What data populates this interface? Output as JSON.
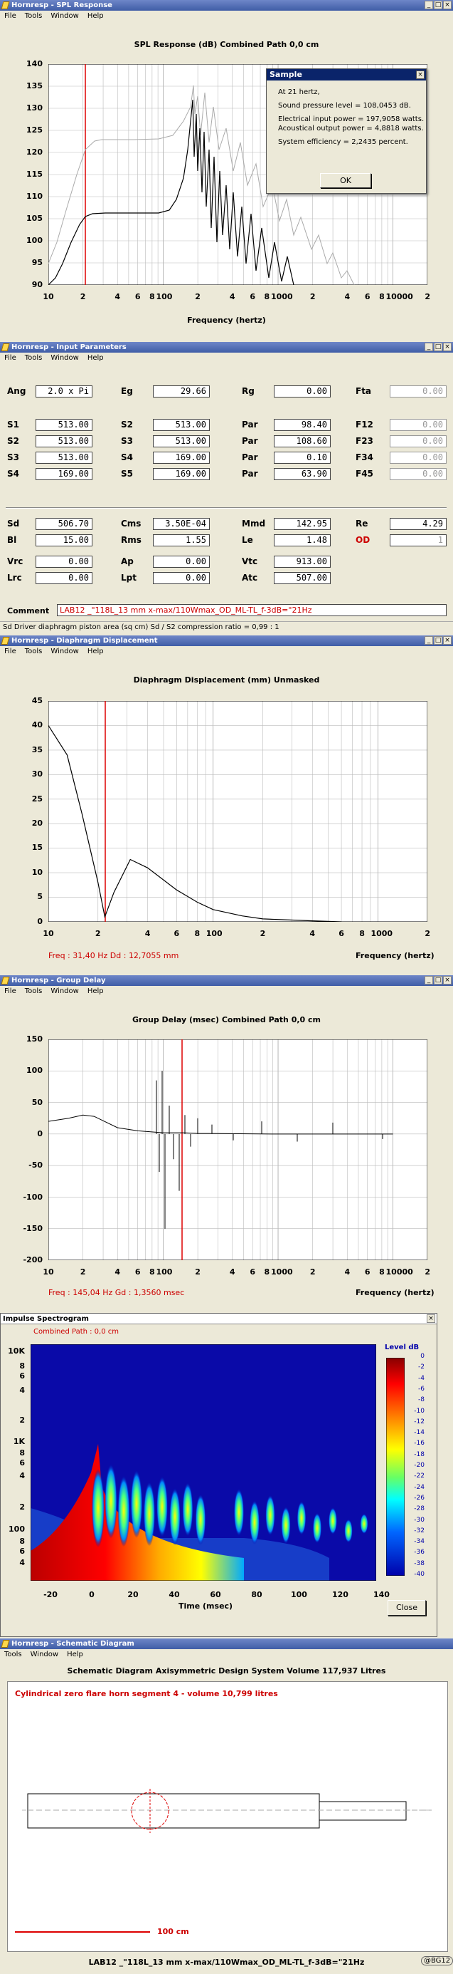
{
  "spl": {
    "title": "Hornresp - SPL Response",
    "menu": [
      "File",
      "Tools",
      "Window",
      "Help"
    ],
    "chart_title": "SPL Response (dB)   Combined   Path 0,0 cm",
    "xlabel": "Frequency (hertz)",
    "yticks": [
      "140",
      "135",
      "130",
      "125",
      "120",
      "115",
      "110",
      "105",
      "100",
      "95",
      "90"
    ],
    "xticks": [
      "10",
      "2",
      "4",
      "6",
      "8",
      "100",
      "2",
      "4",
      "6",
      "8",
      "1000",
      "2",
      "4",
      "6",
      "8",
      "10000",
      "2"
    ],
    "dialog": {
      "title": "Sample",
      "close": "×",
      "lines": [
        "At 21 hertz,",
        "",
        "Sound pressure level = 108,0453 dB.",
        "",
        "Electrical input power = 197,9058 watts.",
        "Acoustical output power = 4,8818 watts.",
        "",
        "System efficiency = 2,2435 percent."
      ],
      "ok": "OK"
    }
  },
  "params": {
    "title": "Hornresp - Input Parameters",
    "menu": [
      "File",
      "Tools",
      "Window",
      "Help"
    ],
    "row1": [
      [
        "Ang",
        "2.0 x Pi"
      ],
      [
        "Eg",
        "29.66"
      ],
      [
        "Rg",
        "0.00"
      ],
      [
        "Fta",
        "0.00"
      ]
    ],
    "grid": [
      [
        [
          "S1",
          "513.00"
        ],
        [
          "S2",
          "513.00"
        ],
        [
          "Par",
          "98.40"
        ],
        [
          "F12",
          "0.00"
        ]
      ],
      [
        [
          "S2",
          "513.00"
        ],
        [
          "S3",
          "513.00"
        ],
        [
          "Par",
          "108.60"
        ],
        [
          "F23",
          "0.00"
        ]
      ],
      [
        [
          "S3",
          "513.00"
        ],
        [
          "S4",
          "169.00"
        ],
        [
          "Par",
          "0.10"
        ],
        [
          "F34",
          "0.00"
        ]
      ],
      [
        [
          "S4",
          "169.00"
        ],
        [
          "S5",
          "169.00"
        ],
        [
          "Par",
          "63.90"
        ],
        [
          "F45",
          "0.00"
        ]
      ]
    ],
    "grid2": [
      [
        [
          "Sd",
          "506.70"
        ],
        [
          "Cms",
          "3.50E-04"
        ],
        [
          "Mmd",
          "142.95"
        ],
        [
          "Re",
          "4.29"
        ]
      ],
      [
        [
          "Bl",
          "15.00"
        ],
        [
          "Rms",
          "1.55"
        ],
        [
          "Le",
          "1.48"
        ],
        [
          "OD",
          "1"
        ]
      ]
    ],
    "grid3": [
      [
        [
          "Vrc",
          "0.00"
        ],
        [
          "Ap",
          "0.00"
        ],
        [
          "Vtc",
          "913.00"
        ]
      ],
      [
        [
          "Lrc",
          "0.00"
        ],
        [
          "Lpt",
          "0.00"
        ],
        [
          "Atc",
          "507.00"
        ]
      ]
    ],
    "comment_label": "Comment",
    "comment": "LAB12 _\"118L_13 mm x-max/110Wmax_OD_ML-TL_f-3dB=\"21Hz",
    "status": "Sd   Driver diaphragm piston area (sq cm)   Sd / S2 compression ratio = 0,99 : 1"
  },
  "disp": {
    "title": "Hornresp - Diaphragm Displacement",
    "menu": [
      "File",
      "Tools",
      "Window",
      "Help"
    ],
    "chart_title": "Diaphragm Displacement (mm)   Unmasked",
    "xlabel": "Frequency (hertz)",
    "yticks": [
      "45",
      "40",
      "35",
      "30",
      "25",
      "20",
      "15",
      "10",
      "5",
      "0"
    ],
    "xticks": [
      "10",
      "2",
      "4",
      "6",
      "8",
      "100",
      "2",
      "4",
      "6",
      "8",
      "1000",
      "2"
    ],
    "readout": "Freq : 31,40 Hz     Dd : 12,7055 mm"
  },
  "gd": {
    "title": "Hornresp - Group Delay",
    "menu": [
      "File",
      "Tools",
      "Window",
      "Help"
    ],
    "chart_title": "Group Delay (msec)   Combined   Path 0,0 cm",
    "xlabel": "Frequency (hertz)",
    "yticks": [
      "150",
      "100",
      "50",
      "0",
      "-50",
      "-100",
      "-150",
      "-200"
    ],
    "xticks": [
      "10",
      "2",
      "4",
      "6",
      "8",
      "100",
      "2",
      "4",
      "6",
      "8",
      "1000",
      "2",
      "4",
      "6",
      "8",
      "10000",
      "2"
    ],
    "readout": "Freq : 145,04 Hz     Gd : 1,3560 msec"
  },
  "imp": {
    "title": "Impulse Spectrogram",
    "close": "×",
    "subtitle": "Combined   Path : 0,0 cm",
    "yticks": [
      "10K",
      "8",
      "6",
      "4",
      "2",
      "1K",
      "8",
      "6",
      "4",
      "2",
      "100",
      "8",
      "6",
      "4"
    ],
    "xticks": [
      "-20",
      "0",
      "20",
      "40",
      "60",
      "80",
      "100",
      "120",
      "140"
    ],
    "xlabel": "Time (msec)",
    "legend_title": "Level   dB",
    "legend_ticks": [
      "0",
      "-2",
      "-4",
      "-6",
      "-8",
      "-10",
      "-12",
      "-14",
      "-16",
      "-18",
      "-20",
      "-22",
      "-24",
      "-26",
      "-28",
      "-30",
      "-32",
      "-34",
      "-36",
      "-38",
      "-40"
    ],
    "close_btn": "Close"
  },
  "sch": {
    "title": "Hornresp - Schematic Diagram",
    "menu": [
      "Tools",
      "Window",
      "Help"
    ],
    "chart_title": "Schematic Diagram   Axisymmetric Design   System Volume 117,937 Litres",
    "segment": "Cylindrical zero flare horn segment 4 - volume 10,799 litres",
    "scale": "100 cm",
    "caption": "LAB12 _\"118L_13 mm x-max/110Wmax_OD_ML-TL_f-3dB=\"21Hz",
    "badge": "@BG12"
  },
  "chart_data": [
    {
      "type": "line",
      "title": "SPL Response (dB)   Combined   Path 0,0 cm",
      "xlabel": "Frequency (hertz)",
      "ylabel": "",
      "xscale": "log",
      "xlim": [
        10,
        20000
      ],
      "ylim": [
        90,
        140
      ],
      "series": [
        {
          "values": [
            [
              10,
              90
            ],
            [
              15,
              99
            ],
            [
              20,
              106
            ],
            [
              25,
              108
            ],
            [
              30,
              108.5
            ],
            [
              50,
              108.5
            ],
            [
              100,
              108.5
            ],
            [
              150,
              109
            ],
            [
              180,
              115
            ],
            [
              200,
              118
            ]
          ]
        }
      ]
    },
    {
      "type": "line",
      "title": "Diaphragm Displacement (mm)   Unmasked",
      "xlabel": "Frequency (hertz)",
      "ylabel": "",
      "xscale": "log",
      "xlim": [
        10,
        2000
      ],
      "ylim": [
        0,
        45
      ],
      "series": [
        {
          "values": [
            [
              10,
              40
            ],
            [
              13,
              34
            ],
            [
              16,
              22
            ],
            [
              20,
              8
            ],
            [
              22,
              1
            ],
            [
              25,
              6
            ],
            [
              31.4,
              12.7
            ],
            [
              40,
              11
            ],
            [
              60,
              6.5
            ],
            [
              80,
              4
            ],
            [
              100,
              2.5
            ],
            [
              150,
              1.2
            ],
            [
              200,
              0.6
            ],
            [
              400,
              0.2
            ],
            [
              600,
              0
            ]
          ]
        }
      ]
    },
    {
      "type": "line",
      "title": "Group Delay (msec)   Combined   Path 0,0 cm",
      "xlabel": "Frequency (hertz)",
      "ylabel": "",
      "xscale": "log",
      "xlim": [
        10,
        20000
      ],
      "ylim": [
        -200,
        150
      ],
      "series": [
        {
          "values": [
            [
              10,
              20
            ],
            [
              15,
              25
            ],
            [
              20,
              30
            ],
            [
              25,
              28
            ],
            [
              40,
              10
            ],
            [
              60,
              5
            ],
            [
              100,
              2
            ],
            [
              150,
              2
            ],
            [
              200,
              1
            ],
            [
              1000,
              0
            ],
            [
              10000,
              0
            ]
          ]
        }
      ]
    }
  ]
}
